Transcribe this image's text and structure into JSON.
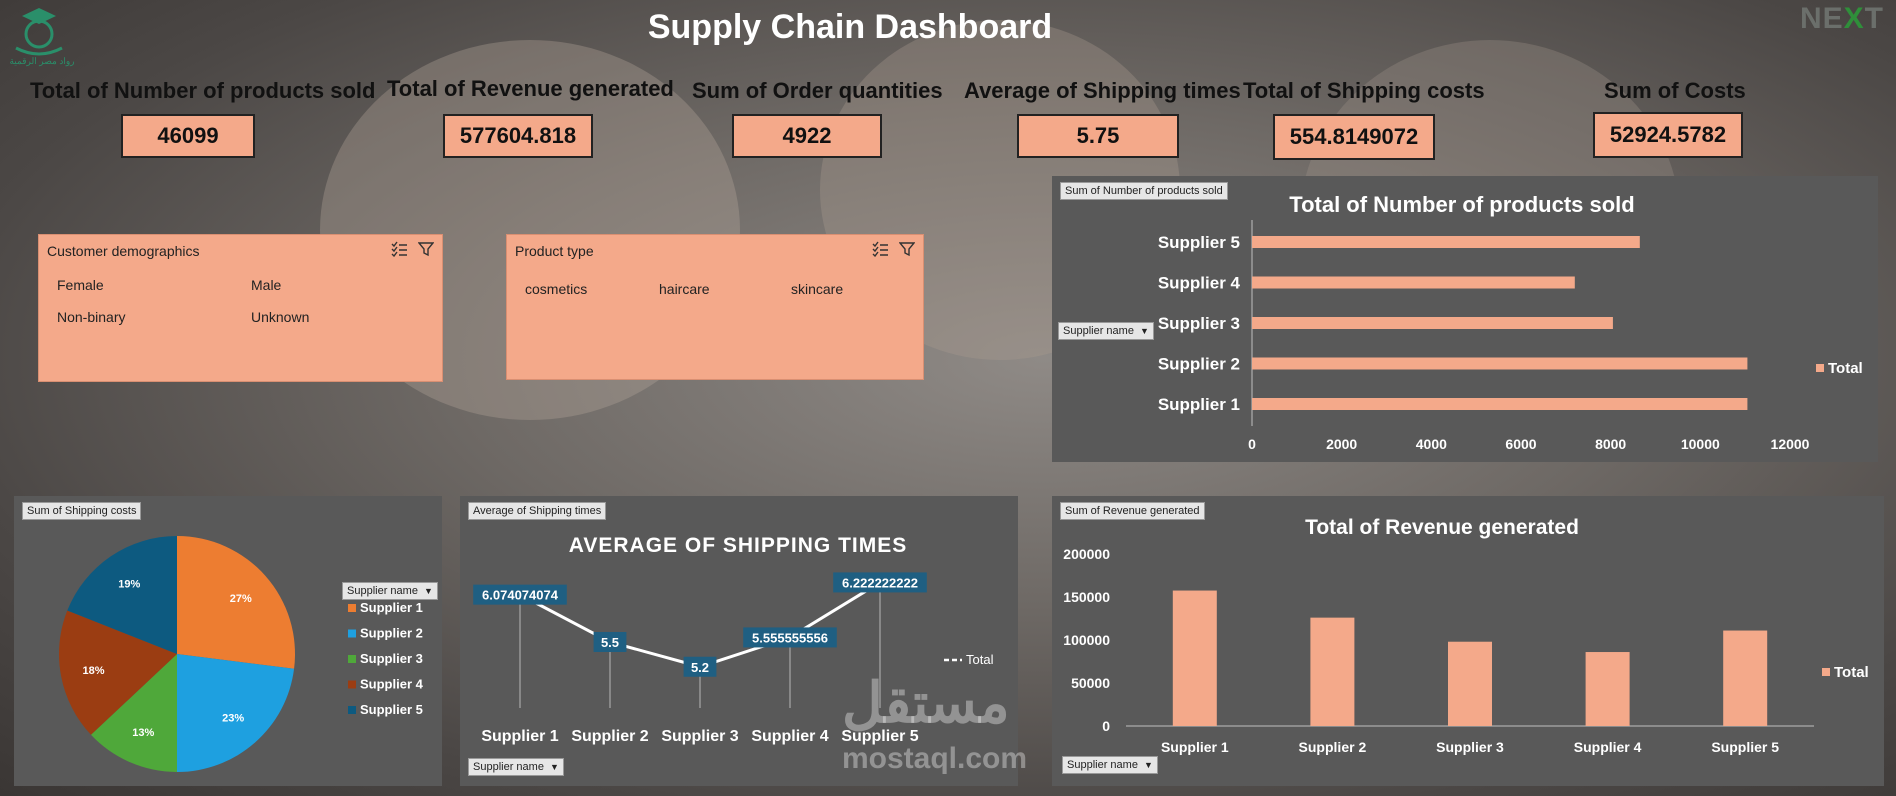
{
  "header": {
    "title": "Supply Chain Dashboard",
    "logo_text": "رواد مصر الرقمية",
    "brand": "NEXT"
  },
  "kpis": [
    {
      "label": "Total of Number of products sold",
      "value": "46099"
    },
    {
      "label": "Total of Revenue generated",
      "value": "577604.818"
    },
    {
      "label": "Sum of Order quantities",
      "value": "4922"
    },
    {
      "label": "Average of Shipping times",
      "value": "5.75"
    },
    {
      "label": "Total of Shipping costs",
      "value": "554.8149072"
    },
    {
      "label": "Sum of Costs",
      "value": "52924.5782"
    }
  ],
  "slicers": {
    "demographics": {
      "title": "Customer demographics",
      "items": [
        "Female",
        "Male",
        "Non-binary",
        "Unknown"
      ]
    },
    "product_type": {
      "title": "Product type",
      "items": [
        "cosmetics",
        "haircare",
        "skincare"
      ]
    }
  },
  "watermark": {
    "arabic": "مستقل",
    "latin": "mostaql.com"
  },
  "colors": {
    "accent": "#f4a98a",
    "panel": "#595959",
    "line_label": "#1f5f82"
  },
  "chart_data": [
    {
      "type": "bar",
      "orientation": "horizontal",
      "tag": "Sum of Number of products sold",
      "filter_label": "Supplier name",
      "title": "Total of Number of products sold",
      "categories": [
        "Supplier 1",
        "Supplier 2",
        "Supplier 3",
        "Supplier 4",
        "Supplier 5"
      ],
      "series": [
        {
          "name": "Total",
          "values": [
            11050,
            11050,
            8050,
            7200,
            8650
          ]
        }
      ],
      "xlim": [
        0,
        12000
      ],
      "ticks": [
        0,
        2000,
        4000,
        6000,
        8000,
        10000,
        12000
      ],
      "legend": "right"
    },
    {
      "type": "pie",
      "tag": "Sum of Shipping costs",
      "filter_label": "Supplier name",
      "categories": [
        "Supplier 1",
        "Supplier 2",
        "Supplier 3",
        "Supplier 4",
        "Supplier 5"
      ],
      "values": [
        27,
        23,
        13,
        18,
        19
      ],
      "labels": [
        "27%",
        "23%",
        "13%",
        "18%",
        "19%"
      ],
      "colors": [
        "#ed7d31",
        "#1ea0e0",
        "#4fa83a",
        "#9b3d12",
        "#0d5a80"
      ],
      "legend": "right"
    },
    {
      "type": "line",
      "tag": "Average of Shipping times",
      "filter_label": "Supplier name",
      "title": "AVERAGE OF SHIPPING TIMES",
      "categories": [
        "Supplier 1",
        "Supplier 2",
        "Supplier 3",
        "Supplier 4",
        "Supplier 5"
      ],
      "series": [
        {
          "name": "Total",
          "values": [
            6.074074074,
            5.5,
            5.2,
            5.555555556,
            6.222222222
          ]
        }
      ],
      "labels": [
        "6.074074074",
        "5.5",
        "5.2",
        "5.555555556",
        "6.222222222"
      ],
      "ylim": [
        4.7,
        6.3
      ],
      "legend": "right"
    },
    {
      "type": "bar",
      "orientation": "vertical",
      "tag": "Sum of Revenue generated",
      "filter_label": "Supplier name",
      "title": "Total of Revenue generated",
      "categories": [
        "Supplier 1",
        "Supplier 2",
        "Supplier 3",
        "Supplier 4",
        "Supplier 5"
      ],
      "series": [
        {
          "name": "Total",
          "values": [
            157500,
            126000,
            98000,
            86000,
            111000
          ]
        }
      ],
      "ylim": [
        0,
        200000
      ],
      "ticks": [
        0,
        50000,
        100000,
        150000,
        200000
      ],
      "legend": "right"
    }
  ]
}
